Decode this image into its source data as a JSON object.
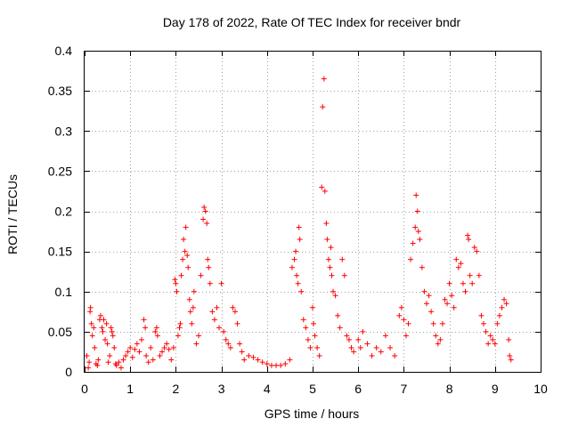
{
  "chart_data": {
    "type": "scatter",
    "title": "Day 178 of 2022, Rate Of TEC Index for receiver bndr",
    "xlabel": "GPS time / hours",
    "ylabel": "ROTI / TECUs",
    "xlim": [
      0,
      10
    ],
    "ylim": [
      0,
      0.4
    ],
    "xticks": [
      "0",
      "1",
      "2",
      "3",
      "4",
      "5",
      "6",
      "7",
      "8",
      "9",
      "10"
    ],
    "yticks": [
      "0",
      "0.05",
      "0.1",
      "0.15",
      "0.2",
      "0.25",
      "0.3",
      "0.35",
      "0.4"
    ],
    "grid": true,
    "marker": "+",
    "color": "#ff0000",
    "series": [
      {
        "name": "ROTI",
        "points": [
          [
            0.05,
            0.02
          ],
          [
            0.08,
            0.005
          ],
          [
            0.1,
            0.012
          ],
          [
            0.12,
            0.075
          ],
          [
            0.13,
            0.08
          ],
          [
            0.15,
            0.06
          ],
          [
            0.17,
            0.045
          ],
          [
            0.2,
            0.055
          ],
          [
            0.22,
            0.03
          ],
          [
            0.25,
            0.01
          ],
          [
            0.28,
            0.008
          ],
          [
            0.3,
            0.015
          ],
          [
            0.33,
            0.065
          ],
          [
            0.35,
            0.07
          ],
          [
            0.38,
            0.055
          ],
          [
            0.4,
            0.05
          ],
          [
            0.42,
            0.065
          ],
          [
            0.45,
            0.04
          ],
          [
            0.48,
            0.06
          ],
          [
            0.5,
            0.035
          ],
          [
            0.52,
            0.012
          ],
          [
            0.55,
            0.02
          ],
          [
            0.58,
            0.055
          ],
          [
            0.6,
            0.05
          ],
          [
            0.62,
            0.045
          ],
          [
            0.65,
            0.03
          ],
          [
            0.68,
            0.01
          ],
          [
            0.7,
            0.008
          ],
          [
            0.75,
            0.012
          ],
          [
            0.8,
            0.005
          ],
          [
            0.85,
            0.015
          ],
          [
            0.9,
            0.02
          ],
          [
            0.95,
            0.025
          ],
          [
            1.0,
            0.03
          ],
          [
            1.05,
            0.018
          ],
          [
            1.1,
            0.028
          ],
          [
            1.15,
            0.035
          ],
          [
            1.2,
            0.025
          ],
          [
            1.25,
            0.04
          ],
          [
            1.3,
            0.065
          ],
          [
            1.33,
            0.055
          ],
          [
            1.35,
            0.02
          ],
          [
            1.4,
            0.012
          ],
          [
            1.45,
            0.03
          ],
          [
            1.5,
            0.015
          ],
          [
            1.55,
            0.05
          ],
          [
            1.58,
            0.055
          ],
          [
            1.6,
            0.045
          ],
          [
            1.65,
            0.02
          ],
          [
            1.7,
            0.025
          ],
          [
            1.75,
            0.03
          ],
          [
            1.8,
            0.035
          ],
          [
            1.85,
            0.028
          ],
          [
            1.9,
            0.015
          ],
          [
            1.95,
            0.03
          ],
          [
            1.98,
            0.115
          ],
          [
            2.0,
            0.11
          ],
          [
            2.02,
            0.1
          ],
          [
            2.05,
            0.045
          ],
          [
            2.08,
            0.055
          ],
          [
            2.1,
            0.06
          ],
          [
            2.12,
            0.12
          ],
          [
            2.15,
            0.14
          ],
          [
            2.17,
            0.165
          ],
          [
            2.2,
            0.15
          ],
          [
            2.22,
            0.18
          ],
          [
            2.25,
            0.145
          ],
          [
            2.27,
            0.13
          ],
          [
            2.3,
            0.09
          ],
          [
            2.32,
            0.075
          ],
          [
            2.35,
            0.06
          ],
          [
            2.38,
            0.08
          ],
          [
            2.4,
            0.1
          ],
          [
            2.45,
            0.035
          ],
          [
            2.5,
            0.045
          ],
          [
            2.55,
            0.12
          ],
          [
            2.6,
            0.19
          ],
          [
            2.62,
            0.205
          ],
          [
            2.65,
            0.2
          ],
          [
            2.68,
            0.185
          ],
          [
            2.7,
            0.14
          ],
          [
            2.72,
            0.13
          ],
          [
            2.75,
            0.11
          ],
          [
            2.8,
            0.075
          ],
          [
            2.85,
            0.065
          ],
          [
            2.9,
            0.08
          ],
          [
            2.95,
            0.055
          ],
          [
            3.0,
            0.11
          ],
          [
            3.05,
            0.05
          ],
          [
            3.1,
            0.04
          ],
          [
            3.15,
            0.035
          ],
          [
            3.2,
            0.03
          ],
          [
            3.25,
            0.08
          ],
          [
            3.3,
            0.075
          ],
          [
            3.35,
            0.06
          ],
          [
            3.4,
            0.035
          ],
          [
            3.45,
            0.025
          ],
          [
            3.5,
            0.015
          ],
          [
            3.6,
            0.02
          ],
          [
            3.7,
            0.018
          ],
          [
            3.8,
            0.015
          ],
          [
            3.9,
            0.012
          ],
          [
            4.0,
            0.01
          ],
          [
            4.1,
            0.008
          ],
          [
            4.2,
            0.008
          ],
          [
            4.3,
            0.008
          ],
          [
            4.4,
            0.01
          ],
          [
            4.5,
            0.015
          ],
          [
            4.55,
            0.13
          ],
          [
            4.6,
            0.14
          ],
          [
            4.63,
            0.15
          ],
          [
            4.65,
            0.12
          ],
          [
            4.68,
            0.11
          ],
          [
            4.7,
            0.18
          ],
          [
            4.72,
            0.165
          ],
          [
            4.75,
            0.1
          ],
          [
            4.8,
            0.065
          ],
          [
            4.85,
            0.055
          ],
          [
            4.9,
            0.04
          ],
          [
            4.95,
            0.03
          ],
          [
            5.0,
            0.08
          ],
          [
            5.02,
            0.06
          ],
          [
            5.05,
            0.045
          ],
          [
            5.1,
            0.03
          ],
          [
            5.15,
            0.02
          ],
          [
            5.2,
            0.23
          ],
          [
            5.22,
            0.33
          ],
          [
            5.25,
            0.365
          ],
          [
            5.27,
            0.225
          ],
          [
            5.3,
            0.185
          ],
          [
            5.32,
            0.165
          ],
          [
            5.35,
            0.14
          ],
          [
            5.38,
            0.13
          ],
          [
            5.4,
            0.155
          ],
          [
            5.42,
            0.12
          ],
          [
            5.45,
            0.1
          ],
          [
            5.5,
            0.095
          ],
          [
            5.55,
            0.07
          ],
          [
            5.6,
            0.055
          ],
          [
            5.65,
            0.14
          ],
          [
            5.7,
            0.12
          ],
          [
            5.75,
            0.045
          ],
          [
            5.8,
            0.04
          ],
          [
            5.85,
            0.03
          ],
          [
            5.9,
            0.025
          ],
          [
            6.0,
            0.04
          ],
          [
            6.05,
            0.03
          ],
          [
            6.1,
            0.05
          ],
          [
            6.2,
            0.035
          ],
          [
            6.3,
            0.02
          ],
          [
            6.4,
            0.03
          ],
          [
            6.5,
            0.025
          ],
          [
            6.6,
            0.045
          ],
          [
            6.7,
            0.03
          ],
          [
            6.8,
            0.02
          ],
          [
            6.9,
            0.07
          ],
          [
            6.95,
            0.08
          ],
          [
            7.0,
            0.065
          ],
          [
            7.05,
            0.045
          ],
          [
            7.1,
            0.06
          ],
          [
            7.15,
            0.14
          ],
          [
            7.2,
            0.16
          ],
          [
            7.25,
            0.18
          ],
          [
            7.27,
            0.22
          ],
          [
            7.3,
            0.2
          ],
          [
            7.32,
            0.175
          ],
          [
            7.35,
            0.165
          ],
          [
            7.4,
            0.13
          ],
          [
            7.45,
            0.1
          ],
          [
            7.5,
            0.085
          ],
          [
            7.55,
            0.095
          ],
          [
            7.6,
            0.075
          ],
          [
            7.65,
            0.06
          ],
          [
            7.7,
            0.045
          ],
          [
            7.75,
            0.035
          ],
          [
            7.8,
            0.04
          ],
          [
            7.85,
            0.06
          ],
          [
            7.9,
            0.09
          ],
          [
            7.95,
            0.085
          ],
          [
            8.0,
            0.11
          ],
          [
            8.05,
            0.095
          ],
          [
            8.1,
            0.08
          ],
          [
            8.15,
            0.14
          ],
          [
            8.2,
            0.13
          ],
          [
            8.25,
            0.135
          ],
          [
            8.3,
            0.11
          ],
          [
            8.35,
            0.1
          ],
          [
            8.4,
            0.17
          ],
          [
            8.42,
            0.165
          ],
          [
            8.45,
            0.12
          ],
          [
            8.5,
            0.11
          ],
          [
            8.55,
            0.155
          ],
          [
            8.6,
            0.15
          ],
          [
            8.65,
            0.12
          ],
          [
            8.7,
            0.07
          ],
          [
            8.75,
            0.06
          ],
          [
            8.8,
            0.05
          ],
          [
            8.85,
            0.035
          ],
          [
            8.9,
            0.045
          ],
          [
            8.95,
            0.04
          ],
          [
            9.0,
            0.035
          ],
          [
            9.05,
            0.06
          ],
          [
            9.1,
            0.07
          ],
          [
            9.15,
            0.08
          ],
          [
            9.2,
            0.09
          ],
          [
            9.25,
            0.085
          ],
          [
            9.3,
            0.04
          ],
          [
            9.32,
            0.02
          ],
          [
            9.35,
            0.015
          ]
        ]
      }
    ]
  }
}
